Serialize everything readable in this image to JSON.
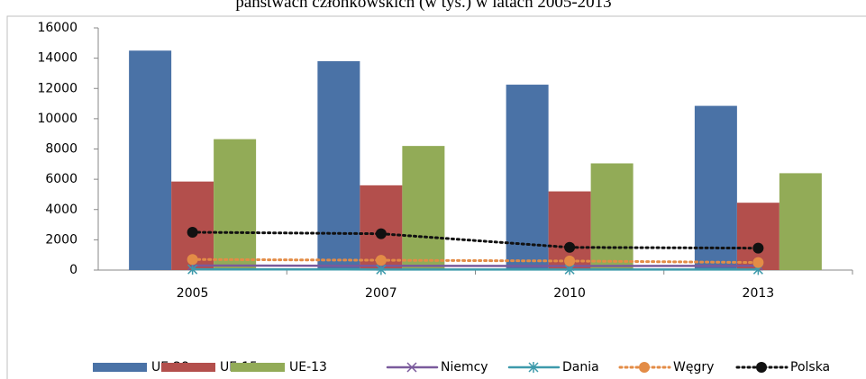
{
  "chart_data": {
    "type": "bar",
    "title": "państwach członkowskich (w tys.) w latach 2005-2013",
    "categories": [
      "2005",
      "2007",
      "2010",
      "2013"
    ],
    "series": [
      {
        "name": "UE-28",
        "color": "#4a72a6",
        "type": "bar",
        "values": [
          14500,
          13800,
          12250,
          10850
        ]
      },
      {
        "name": "UE-15",
        "color": "#b34f4c",
        "type": "bar",
        "values": [
          5850,
          5600,
          5200,
          4450
        ]
      },
      {
        "name": "UE-13",
        "color": "#92ab57",
        "type": "bar",
        "values": [
          8650,
          8200,
          7050,
          6400
        ]
      },
      {
        "name": "Niemcy",
        "color": "#7a5a9c",
        "type": "line",
        "marker": "x",
        "values": [
          300,
          280,
          270,
          280
        ]
      },
      {
        "name": "Dania",
        "color": "#3d9aab",
        "type": "line",
        "marker": "star",
        "values": [
          50,
          40,
          40,
          40
        ]
      },
      {
        "name": "Węgry",
        "color": "#e38c46",
        "type": "line",
        "marker": "circle",
        "dotted": true,
        "values": [
          700,
          650,
          600,
          500
        ]
      },
      {
        "name": "Polska",
        "color": "#111111",
        "type": "line",
        "marker": "circle",
        "dotted": true,
        "values": [
          2500,
          2400,
          1500,
          1450
        ]
      }
    ],
    "ylim": [
      0,
      16000
    ],
    "yticks": [
      0,
      2000,
      4000,
      6000,
      8000,
      10000,
      12000,
      14000,
      16000
    ],
    "legend": "bottom"
  }
}
